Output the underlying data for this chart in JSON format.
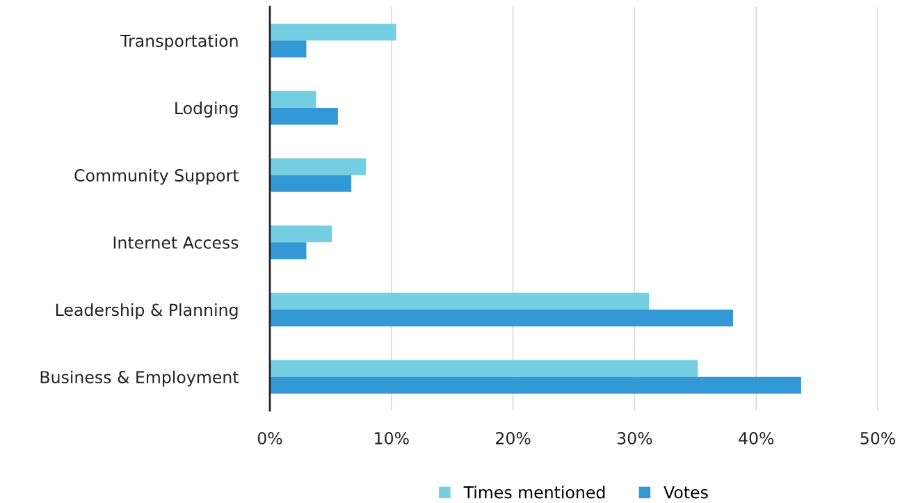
{
  "chart_data": {
    "type": "bar",
    "orientation": "horizontal",
    "categories": [
      "Transportation",
      "Lodging",
      "Community Support",
      "Internet Access",
      "Leadership & Planning",
      "Business & Employment"
    ],
    "series": [
      {
        "name": "Times mentioned",
        "color": "#74cfe3",
        "values": [
          10.4,
          3.8,
          7.9,
          5.1,
          31.2,
          35.2
        ]
      },
      {
        "name": "Votes",
        "color": "#3399d6",
        "values": [
          3.0,
          5.6,
          6.7,
          3.0,
          38.1,
          43.7
        ]
      }
    ],
    "xlim": [
      0,
      50
    ],
    "xticks": [
      {
        "value": 0,
        "label": "0%"
      },
      {
        "value": 10,
        "label": "10%"
      },
      {
        "value": 20,
        "label": "20%"
      },
      {
        "value": 30,
        "label": "30%"
      },
      {
        "value": 40,
        "label": "40%"
      },
      {
        "value": 50,
        "label": "50%"
      }
    ],
    "grid": "x",
    "legend": "bottom"
  }
}
